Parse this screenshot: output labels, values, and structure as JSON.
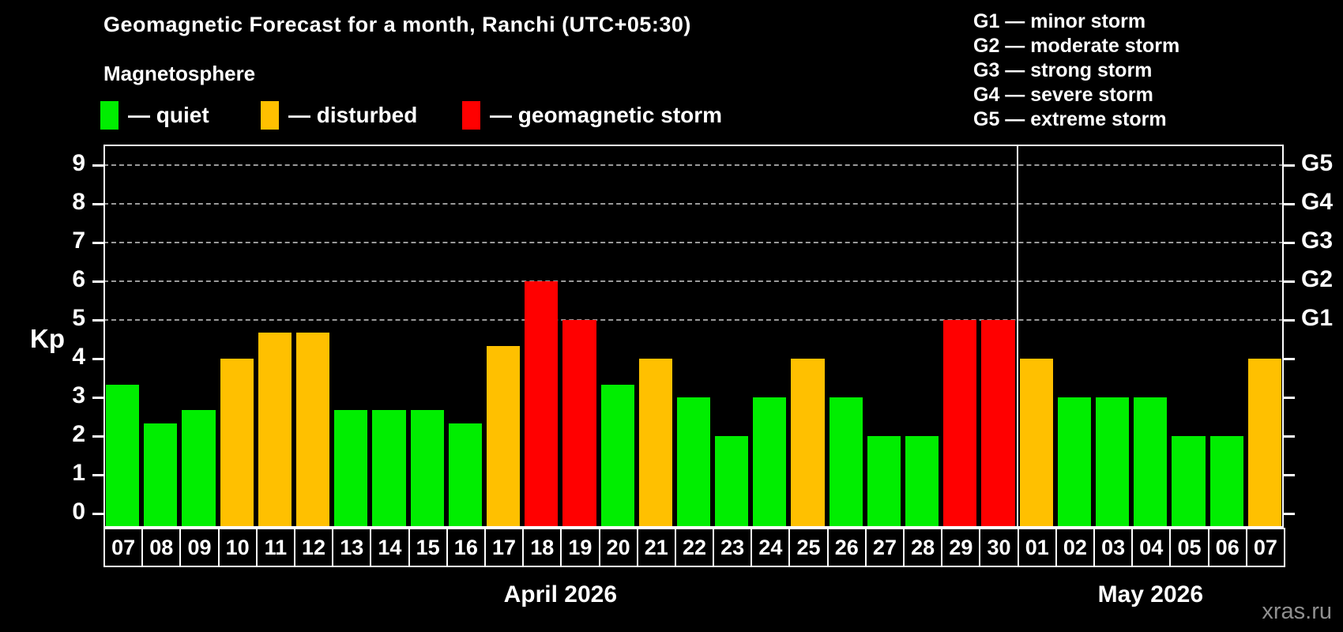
{
  "header": {
    "title": "Geomagnetic Forecast for a month, Ranchi (UTC+05:30)",
    "subtitle": "Magnetosphere"
  },
  "legend": {
    "items": [
      {
        "label": "— quiet",
        "status": "quiet",
        "color": "#00ee00"
      },
      {
        "label": "— disturbed",
        "status": "disturbed",
        "color": "#ffc000"
      },
      {
        "label": "— geomagnetic storm",
        "status": "storm",
        "color": "#ff0000"
      }
    ]
  },
  "storm_scale_legend": {
    "items": [
      "G1 — minor storm",
      "G2 — moderate storm",
      "G3 — strong storm",
      "G4 — severe storm",
      "G5 — extreme storm"
    ]
  },
  "watermark": "xras.ru",
  "chart_data": {
    "type": "bar",
    "ylabel": "Kp",
    "ylim": [
      0,
      9
    ],
    "yticks": [
      0,
      1,
      2,
      3,
      4,
      5,
      6,
      7,
      8,
      9
    ],
    "grid_levels_kp": [
      5,
      6,
      7,
      8,
      9
    ],
    "grid_on": true,
    "legend_position": "top-left",
    "right_axis": [
      {
        "label": "G1",
        "kp": 5
      },
      {
        "label": "G2",
        "kp": 6
      },
      {
        "label": "G3",
        "kp": 7
      },
      {
        "label": "G4",
        "kp": 8
      },
      {
        "label": "G5",
        "kp": 9
      }
    ],
    "months": [
      {
        "label": "April 2026",
        "days": [
          {
            "day": "07",
            "kp": 3.33,
            "status": "quiet"
          },
          {
            "day": "08",
            "kp": 2.33,
            "status": "quiet"
          },
          {
            "day": "09",
            "kp": 2.67,
            "status": "quiet"
          },
          {
            "day": "10",
            "kp": 4,
            "status": "disturbed"
          },
          {
            "day": "11",
            "kp": 4.67,
            "status": "disturbed"
          },
          {
            "day": "12",
            "kp": 4.67,
            "status": "disturbed"
          },
          {
            "day": "13",
            "kp": 2.67,
            "status": "quiet"
          },
          {
            "day": "14",
            "kp": 2.67,
            "status": "quiet"
          },
          {
            "day": "15",
            "kp": 2.67,
            "status": "quiet"
          },
          {
            "day": "16",
            "kp": 2.33,
            "status": "quiet"
          },
          {
            "day": "17",
            "kp": 4.33,
            "status": "disturbed"
          },
          {
            "day": "18",
            "kp": 6,
            "status": "storm"
          },
          {
            "day": "19",
            "kp": 5,
            "status": "storm"
          },
          {
            "day": "20",
            "kp": 3.33,
            "status": "quiet"
          },
          {
            "day": "21",
            "kp": 4,
            "status": "disturbed"
          },
          {
            "day": "22",
            "kp": 3,
            "status": "quiet"
          },
          {
            "day": "23",
            "kp": 2,
            "status": "quiet"
          },
          {
            "day": "24",
            "kp": 3,
            "status": "quiet"
          },
          {
            "day": "25",
            "kp": 4,
            "status": "disturbed"
          },
          {
            "day": "26",
            "kp": 3,
            "status": "quiet"
          },
          {
            "day": "27",
            "kp": 2,
            "status": "quiet"
          },
          {
            "day": "28",
            "kp": 2,
            "status": "quiet"
          },
          {
            "day": "29",
            "kp": 5,
            "status": "storm"
          },
          {
            "day": "30",
            "kp": 5,
            "status": "storm"
          }
        ]
      },
      {
        "label": "May 2026",
        "days": [
          {
            "day": "01",
            "kp": 4,
            "status": "disturbed"
          },
          {
            "day": "02",
            "kp": 3,
            "status": "quiet"
          },
          {
            "day": "03",
            "kp": 3,
            "status": "quiet"
          },
          {
            "day": "04",
            "kp": 3,
            "status": "quiet"
          },
          {
            "day": "05",
            "kp": 2,
            "status": "quiet"
          },
          {
            "day": "06",
            "kp": 2,
            "status": "quiet"
          },
          {
            "day": "07",
            "kp": 4,
            "status": "disturbed"
          }
        ]
      }
    ]
  }
}
